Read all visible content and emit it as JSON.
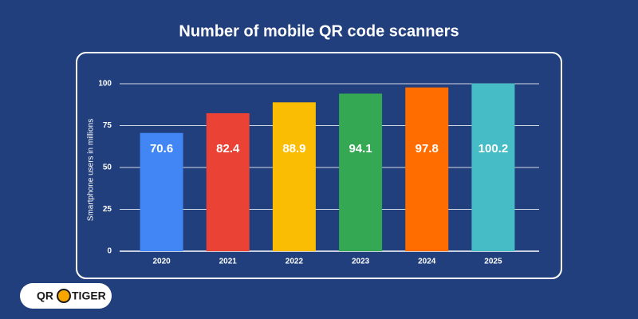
{
  "chart_data": {
    "type": "bar",
    "title": "Number of mobile QR code scanners",
    "y_label": "Smartphone users in millions",
    "categories": [
      "2020",
      "2021",
      "2022",
      "2023",
      "2024",
      "2025"
    ],
    "values": [
      70.6,
      82.4,
      88.9,
      94.1,
      97.8,
      100.2
    ],
    "colors": [
      "#4285f4",
      "#ea4335",
      "#fbbc04",
      "#34a853",
      "#ff6d01",
      "#46bdc6"
    ],
    "ylim": [
      0,
      100
    ],
    "yticks": [
      0,
      25,
      50,
      75,
      100
    ],
    "grid": true
  },
  "logo": {
    "left": "QR",
    "right": "TIGER"
  }
}
